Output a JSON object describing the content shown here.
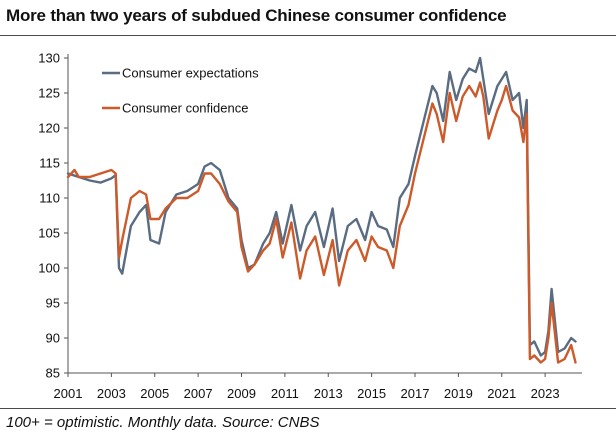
{
  "title": "More than two years of subdued Chinese consumer confidence",
  "note": "100+ = optimistic. Monthly data. Source: CNBS",
  "colors": {
    "expectations": "#5a6c82",
    "confidence": "#cc5a2a"
  },
  "chart_data": {
    "type": "line",
    "title": "More than two years of subdued Chinese consumer confidence",
    "xlabel": "",
    "ylabel": "",
    "xlim": [
      2001,
      2024.7
    ],
    "ylim": [
      85,
      130
    ],
    "x_ticks": [
      2001,
      2003,
      2005,
      2007,
      2009,
      2011,
      2013,
      2015,
      2017,
      2019,
      2021,
      2023
    ],
    "y_ticks": [
      85,
      90,
      95,
      100,
      105,
      110,
      115,
      120,
      125,
      130
    ],
    "legend": {
      "position": "top-left"
    },
    "series": [
      {
        "name": "Consumer expectations",
        "color": "#5a6c82",
        "x": [
          2001.0,
          2001.5,
          2002.0,
          2002.5,
          2003.0,
          2003.2,
          2003.35,
          2003.5,
          2003.9,
          2004.3,
          2004.6,
          2004.8,
          2005.2,
          2005.5,
          2006.0,
          2006.5,
          2007.0,
          2007.3,
          2007.6,
          2008.0,
          2008.4,
          2008.8,
          2009.0,
          2009.3,
          2009.6,
          2010.0,
          2010.3,
          2010.6,
          2010.9,
          2011.3,
          2011.7,
          2012.0,
          2012.4,
          2012.8,
          2013.2,
          2013.5,
          2013.9,
          2014.3,
          2014.7,
          2015.0,
          2015.3,
          2015.7,
          2016.0,
          2016.3,
          2016.7,
          2017.0,
          2017.4,
          2017.8,
          2018.0,
          2018.3,
          2018.6,
          2018.9,
          2019.2,
          2019.5,
          2019.8,
          2020.0,
          2020.15,
          2020.4,
          2020.8,
          2021.0,
          2021.2,
          2021.5,
          2021.8,
          2022.0,
          2022.15,
          2022.3,
          2022.5,
          2022.8,
          2023.0,
          2023.15,
          2023.3,
          2023.6,
          2023.9,
          2024.2,
          2024.4
        ],
        "values": [
          113.5,
          113.0,
          112.5,
          112.2,
          112.8,
          113.3,
          100.0,
          99.2,
          106.0,
          108.0,
          109.0,
          104.0,
          103.5,
          108.0,
          110.5,
          111.0,
          112.0,
          114.5,
          115.0,
          114.0,
          110.0,
          108.5,
          104.0,
          100.0,
          100.5,
          103.5,
          105.0,
          108.0,
          103.5,
          109.0,
          102.5,
          106.0,
          108.0,
          103.0,
          108.5,
          101.0,
          106.0,
          107.0,
          104.0,
          108.0,
          106.0,
          105.5,
          103.0,
          110.0,
          112.0,
          116.0,
          121.0,
          126.0,
          125.0,
          121.0,
          128.0,
          124.0,
          127.0,
          128.5,
          128.0,
          130.0,
          127.0,
          122.0,
          126.0,
          127.0,
          128.0,
          124.0,
          125.0,
          120.0,
          124.0,
          89.0,
          89.5,
          87.5,
          88.0,
          91.0,
          97.0,
          88.0,
          88.5,
          90.0,
          89.5
        ]
      },
      {
        "name": "Consumer confidence",
        "color": "#cc5a2a",
        "x": [
          2001.0,
          2001.3,
          2001.5,
          2002.0,
          2002.5,
          2003.0,
          2003.2,
          2003.35,
          2003.5,
          2003.9,
          2004.3,
          2004.6,
          2004.8,
          2005.2,
          2005.5,
          2006.0,
          2006.5,
          2007.0,
          2007.3,
          2007.6,
          2008.0,
          2008.4,
          2008.8,
          2009.0,
          2009.3,
          2009.6,
          2010.0,
          2010.3,
          2010.6,
          2010.9,
          2011.3,
          2011.7,
          2012.0,
          2012.4,
          2012.8,
          2013.2,
          2013.5,
          2013.9,
          2014.3,
          2014.7,
          2015.0,
          2015.3,
          2015.7,
          2016.0,
          2016.3,
          2016.7,
          2017.0,
          2017.4,
          2017.8,
          2018.0,
          2018.3,
          2018.6,
          2018.9,
          2019.2,
          2019.5,
          2019.8,
          2020.0,
          2020.15,
          2020.4,
          2020.8,
          2021.0,
          2021.2,
          2021.5,
          2021.8,
          2022.0,
          2022.15,
          2022.3,
          2022.5,
          2022.8,
          2023.0,
          2023.15,
          2023.3,
          2023.6,
          2023.9,
          2024.2,
          2024.4
        ],
        "values": [
          113.0,
          114.0,
          113.0,
          113.0,
          113.5,
          114.0,
          113.5,
          101.5,
          104.0,
          110.0,
          111.0,
          110.5,
          107.0,
          107.0,
          108.5,
          110.0,
          110.0,
          111.0,
          113.5,
          113.5,
          112.0,
          109.5,
          108.0,
          103.0,
          99.5,
          100.5,
          102.5,
          103.5,
          107.0,
          101.5,
          106.5,
          98.5,
          102.5,
          104.5,
          99.0,
          104.0,
          97.5,
          102.5,
          104.0,
          101.0,
          104.5,
          103.0,
          102.5,
          100.0,
          106.0,
          109.0,
          113.5,
          118.5,
          123.5,
          122.0,
          118.0,
          125.0,
          121.0,
          124.5,
          126.0,
          124.5,
          126.5,
          124.5,
          118.5,
          122.5,
          124.0,
          126.0,
          122.5,
          121.5,
          118.0,
          122.0,
          87.0,
          87.5,
          86.5,
          87.0,
          90.0,
          95.0,
          86.5,
          87.0,
          89.0,
          86.5
        ]
      }
    ]
  }
}
